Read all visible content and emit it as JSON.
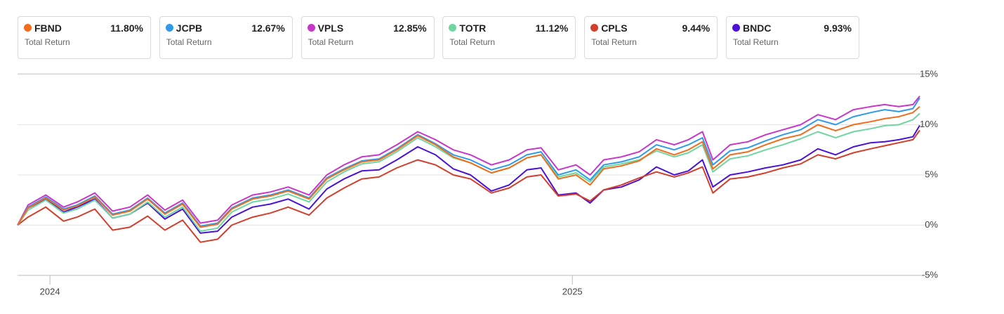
{
  "chart_data": {
    "type": "line",
    "metric": "Total Return",
    "x": [
      2023.938,
      2023.958,
      2023.992,
      2024.026,
      2024.052,
      2024.086,
      2024.12,
      2024.153,
      2024.187,
      2024.22,
      2024.254,
      2024.288,
      2024.321,
      2024.348,
      2024.388,
      2024.422,
      2024.456,
      2024.496,
      2024.53,
      2024.563,
      2024.597,
      2024.63,
      2024.664,
      2024.704,
      2024.738,
      2024.772,
      2024.805,
      2024.845,
      2024.879,
      2024.913,
      2024.94,
      2024.973,
      2025.007,
      2025.034,
      2025.06,
      2025.094,
      2025.128,
      2025.161,
      2025.195,
      2025.222,
      2025.249,
      2025.269,
      2025.302,
      2025.336,
      2025.37,
      2025.403,
      2025.437,
      2025.47,
      2025.504,
      2025.538,
      2025.571,
      2025.598,
      2025.625,
      2025.652,
      2025.665
    ],
    "xlim": [
      2023.938,
      2025.665
    ],
    "xticks": [
      2024,
      2025
    ],
    "ylim": [
      -5,
      15
    ],
    "yticks": [
      {
        "value": 15,
        "label": "15%"
      },
      {
        "value": 10,
        "label": "10%"
      },
      {
        "value": 5,
        "label": "5%"
      },
      {
        "value": 0,
        "label": "0%"
      },
      {
        "value": -5,
        "label": "-5%"
      }
    ],
    "grid": true,
    "series": [
      {
        "name": "FBND",
        "color": "#f26c1c",
        "total_return": "11.80%",
        "values": [
          0,
          1.7,
          2.7,
          1.5,
          1.9,
          2.8,
          1,
          1.4,
          2.6,
          1.1,
          2.1,
          -0.2,
          0.1,
          1.6,
          2.6,
          2.9,
          3.4,
          2.6,
          4.6,
          5.5,
          6.3,
          6.5,
          7.5,
          8.9,
          8,
          6.8,
          6.2,
          5.2,
          5.7,
          6.7,
          7,
          4.6,
          5,
          4,
          5.6,
          5.9,
          6.4,
          7.6,
          7,
          7.5,
          8.3,
          5.6,
          7,
          7.3,
          8,
          8.6,
          9,
          10,
          9.4,
          10,
          10.3,
          10.6,
          10.8,
          11.2,
          11.8
        ]
      },
      {
        "name": "JCPB",
        "color": "#2f9be8",
        "total_return": "12.67%",
        "values": [
          0,
          1.8,
          2.8,
          1.6,
          2,
          2.9,
          1.1,
          1.5,
          2.7,
          1.2,
          2.2,
          -0.1,
          0.2,
          1.7,
          2.7,
          3,
          3.5,
          2.7,
          4.7,
          5.6,
          6.4,
          6.6,
          7.6,
          9,
          8.1,
          7,
          6.5,
          5.5,
          6,
          7,
          7.3,
          5,
          5.5,
          4.5,
          6,
          6.3,
          6.8,
          8,
          7.5,
          8,
          8.7,
          6,
          7.4,
          7.7,
          8.4,
          9,
          9.5,
          10.5,
          10,
          10.8,
          11.2,
          11.5,
          11.3,
          11.6,
          12.67
        ]
      },
      {
        "name": "VPLS",
        "color": "#c936c9",
        "total_return": "12.85%",
        "values": [
          0,
          2,
          3,
          1.8,
          2.3,
          3.2,
          1.4,
          1.8,
          3,
          1.5,
          2.5,
          0.2,
          0.5,
          2,
          3,
          3.3,
          3.8,
          3,
          5,
          6,
          6.8,
          7,
          8,
          9.3,
          8.5,
          7.5,
          7,
          6,
          6.5,
          7.5,
          7.7,
          5.5,
          6,
          5,
          6.5,
          6.8,
          7.3,
          8.5,
          8,
          8.5,
          9.3,
          6.5,
          8,
          8.3,
          9,
          9.5,
          10,
          11,
          10.5,
          11.5,
          11.8,
          12,
          11.8,
          12,
          12.85
        ]
      },
      {
        "name": "TOTR",
        "color": "#6fd6a0",
        "total_return": "11.12%",
        "values": [
          0,
          1.5,
          2.5,
          1.2,
          1.6,
          2.5,
          0.7,
          1.1,
          2.3,
          0.8,
          1.8,
          -0.6,
          -0.3,
          1.3,
          2.3,
          2.6,
          3.1,
          2.3,
          4.3,
          5.3,
          6.1,
          6.3,
          7.3,
          8.7,
          7.8,
          6.7,
          6.2,
          5.2,
          5.7,
          6.7,
          7,
          4.8,
          5.2,
          4.3,
          5.8,
          6.1,
          6.5,
          7.4,
          6.8,
          7.2,
          8,
          5.3,
          6.6,
          6.9,
          7.5,
          8,
          8.6,
          9.3,
          8.7,
          9.3,
          9.6,
          9.9,
          10,
          10.5,
          11.12
        ]
      },
      {
        "name": "CPLS",
        "color": "#d23f2c",
        "total_return": "9.44%",
        "values": [
          0,
          0.8,
          1.8,
          0.4,
          0.8,
          1.6,
          -0.5,
          -0.2,
          0.9,
          -0.5,
          0.5,
          -1.7,
          -1.4,
          0,
          0.8,
          1.2,
          1.8,
          1,
          2.7,
          3.7,
          4.6,
          4.8,
          5.7,
          6.5,
          6,
          5,
          4.6,
          3.2,
          3.7,
          4.8,
          5,
          2.9,
          3.1,
          2.4,
          3.5,
          4,
          4.7,
          5.3,
          4.8,
          5.2,
          5.8,
          3.2,
          4.6,
          4.8,
          5.2,
          5.7,
          6.1,
          7,
          6.6,
          7.2,
          7.6,
          7.9,
          8.2,
          8.5,
          9.44
        ]
      },
      {
        "name": "BNDC",
        "color": "#4a12d6",
        "total_return": "9.93%",
        "values": [
          0,
          1.7,
          2.6,
          1.3,
          1.8,
          2.6,
          0.7,
          1.1,
          2.2,
          0.6,
          1.6,
          -0.8,
          -0.6,
          0.8,
          1.8,
          2.1,
          2.6,
          1.6,
          3.6,
          4.6,
          5.4,
          5.5,
          6.5,
          7.8,
          7,
          5.6,
          5,
          3.4,
          4,
          5.5,
          5.7,
          3,
          3.2,
          2.2,
          3.5,
          3.8,
          4.5,
          5.8,
          5,
          5.4,
          6.5,
          3.8,
          5,
          5.3,
          5.7,
          6,
          6.5,
          7.6,
          7,
          7.8,
          8.2,
          8.3,
          8.5,
          8.8,
          9.93
        ]
      }
    ]
  }
}
